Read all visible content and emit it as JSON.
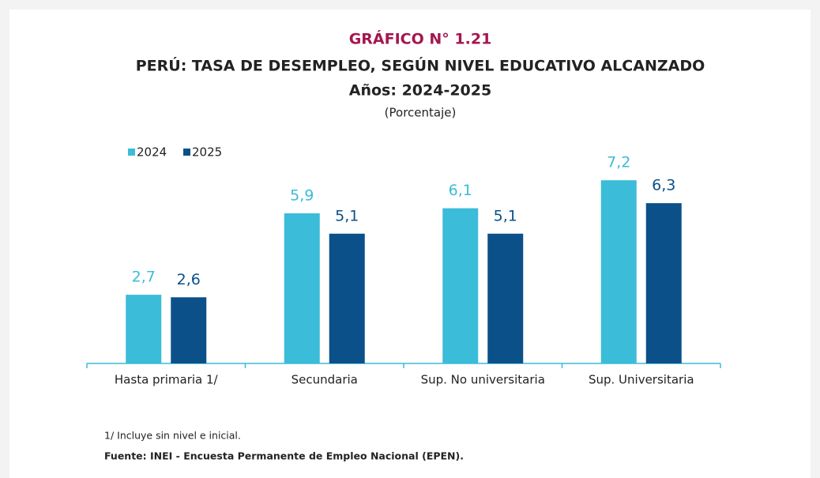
{
  "chart_data": {
    "type": "bar",
    "title": "GRÁFICO N° 1.21",
    "subtitle": "PERÚ: TASA DE DESEMPLEO, SEGÚN NIVEL EDUCATIVO ALCANZADO",
    "period": "Años: 2024-2025",
    "unit": "(Porcentaje)",
    "categories": [
      "Hasta primaria 1/",
      "Secundaria",
      "Sup. No universitaria",
      "Sup. Universitaria"
    ],
    "series": [
      {
        "name": "2024",
        "color": "#3bbcd9",
        "values": [
          2.7,
          5.9,
          6.1,
          7.2
        ],
        "value_labels": [
          "2,7",
          "5,9",
          "6,1",
          "7,2"
        ]
      },
      {
        "name": "2025",
        "color": "#0b5089",
        "values": [
          2.6,
          5.1,
          5.1,
          6.3
        ],
        "value_labels": [
          "2,6",
          "5,1",
          "5,1",
          "6,3"
        ]
      }
    ],
    "legend": "top-left",
    "footnote": "1/ Incluye sin nivel e inicial.",
    "source": "Fuente: INEI - Encuesta Permanente de Empleo Nacional (EPEN)."
  }
}
